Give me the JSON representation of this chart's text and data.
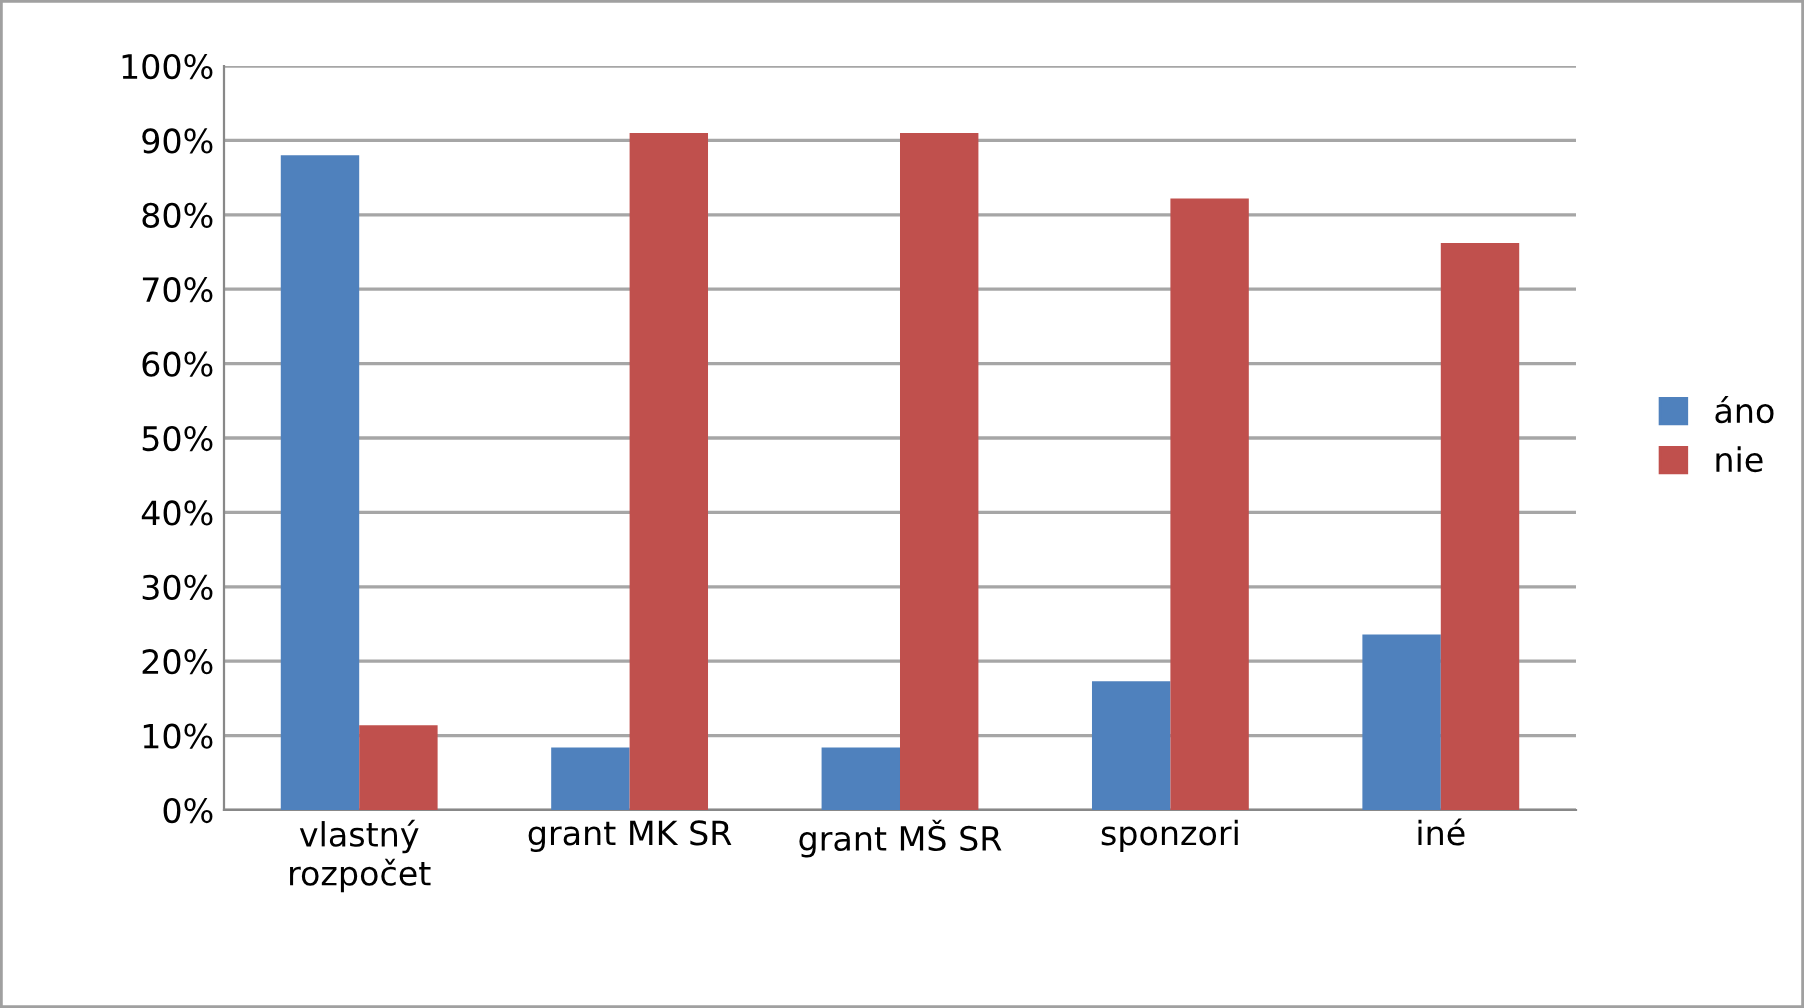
{
  "chart_data": {
    "type": "bar",
    "categories": [
      "vlastný\nrozpočet",
      "grant MK SR",
      "grant MŠ SR",
      "sponzori",
      "iné"
    ],
    "series": [
      {
        "name": "áno",
        "color": "#4f81bd",
        "values": [
          88,
          8.4,
          8.4,
          17.3,
          23.6
        ]
      },
      {
        "name": "nie",
        "color": "#c0504d",
        "values": [
          11.4,
          91,
          91,
          82.2,
          76.2
        ]
      }
    ],
    "ylim": [
      0,
      100
    ],
    "yticks": [
      {
        "value": 0,
        "label": "0%"
      },
      {
        "value": 10,
        "label": "10%"
      },
      {
        "value": 20,
        "label": "20%"
      },
      {
        "value": 30,
        "label": "30%"
      },
      {
        "value": 40,
        "label": "40%"
      },
      {
        "value": 50,
        "label": "50%"
      },
      {
        "value": 60,
        "label": "60%"
      },
      {
        "value": 70,
        "label": "70%"
      },
      {
        "value": 80,
        "label": "80%"
      },
      {
        "value": 90,
        "label": "90%"
      },
      {
        "value": 100,
        "label": "100%"
      }
    ],
    "grid": "y",
    "legend": "right"
  }
}
